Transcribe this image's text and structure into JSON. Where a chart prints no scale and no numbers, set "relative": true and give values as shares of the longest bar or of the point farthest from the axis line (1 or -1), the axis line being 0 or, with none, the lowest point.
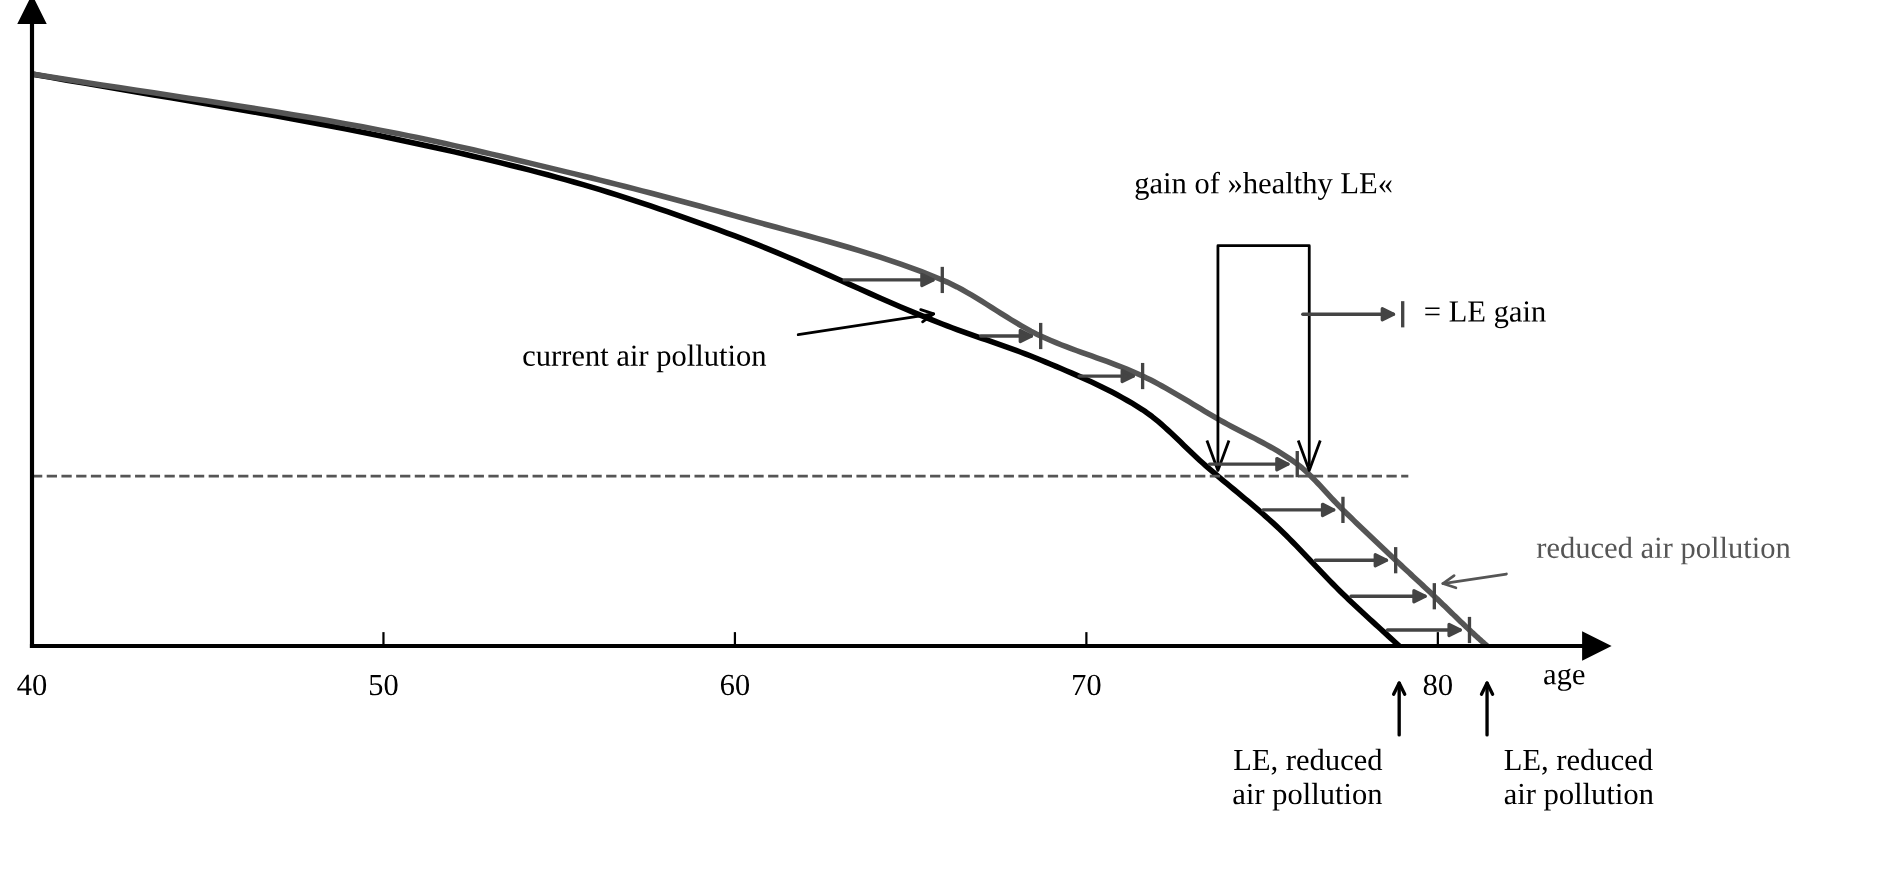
{
  "chart_data": {
    "type": "line",
    "relative": true,
    "xlabel": "age",
    "x": [
      40.0,
      49.9,
      55.2,
      60.0,
      65.9,
      68.7,
      71.6,
      73.8,
      76.0,
      77.3,
      78.8,
      79.9,
      80.9,
      81.4
    ],
    "xlim": [
      40,
      84.5
    ],
    "xticks": [
      40,
      50,
      60,
      70,
      80
    ],
    "series": [
      {
        "name": "current air pollution",
        "color": "#000000",
        "x": [
          40.0,
          49.9,
          55.2,
          60.0,
          65.9,
          68.7,
          71.6,
          73.4,
          75.4,
          77.3,
          78.9
        ],
        "values": [
          1.0,
          0.892,
          0.815,
          0.717,
          0.563,
          0.5,
          0.413,
          0.315,
          0.21,
          0.091,
          0.0
        ]
      },
      {
        "name": "reduced air pollution",
        "color": "#555555",
        "values": [
          1.0,
          0.902,
          0.829,
          0.752,
          0.64,
          0.542,
          0.472,
          0.395,
          0.318,
          0.238,
          0.15,
          0.087,
          0.028,
          0.0
        ]
      }
    ],
    "ref_lines": [
      {
        "axis": "y",
        "value": 0.297,
        "color": "#555555",
        "line_style": "dashed"
      }
    ],
    "annotations": [
      "gain of »healthy LE«",
      "= LE gain",
      "LE, reduced\nair pollution",
      "LE, reduced\nair pollution"
    ],
    "grid": false,
    "legend": false,
    "marker": "none",
    "line_style": "solid"
  }
}
